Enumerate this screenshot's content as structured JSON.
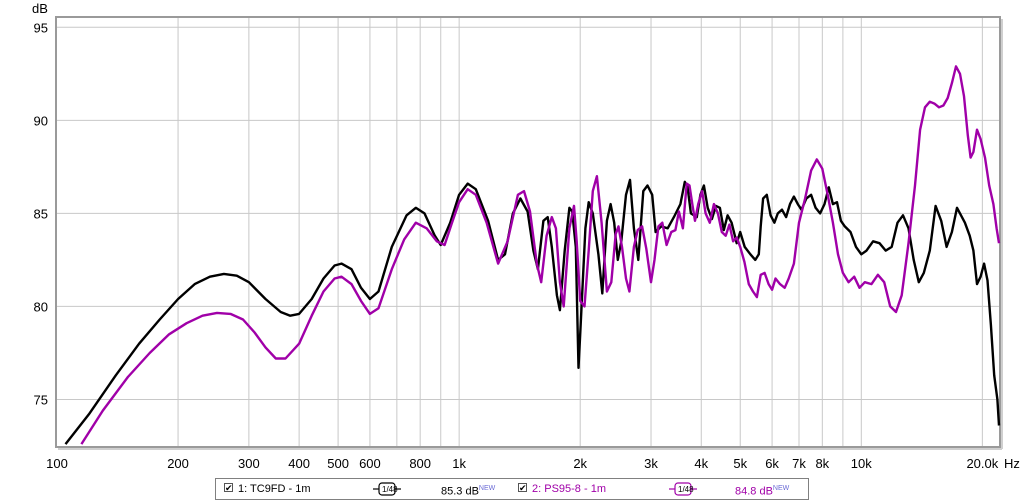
{
  "chart_data": {
    "type": "line",
    "ylabel": "dB",
    "xlabel": "Hz",
    "xscale": "log",
    "xlim": [
      100,
      22000
    ],
    "ylim": [
      72.5,
      95.5
    ],
    "grid": true,
    "x_tick_values": [
      100,
      200,
      300,
      400,
      500,
      600,
      800,
      1000,
      2000,
      3000,
      4000,
      5000,
      6000,
      7000,
      8000,
      10000,
      20000
    ],
    "x_tick_labels": [
      "100",
      "200",
      "300",
      "400",
      "500",
      "600",
      "800",
      "1k",
      "2k",
      "3k",
      "4k",
      "5k",
      "6k",
      "7k",
      "8k",
      "10k",
      "20.0k"
    ],
    "x_minor_ticks": [
      700,
      900,
      9000
    ],
    "y_tick_values": [
      75,
      80,
      85,
      90,
      95
    ],
    "y_tick_labels": [
      "75",
      "80",
      "85",
      "90",
      "95"
    ],
    "series": [
      {
        "name": "1: TC9FD - 1m",
        "color": "#000000",
        "points": [
          [
            105,
            72.6
          ],
          [
            120,
            74.2
          ],
          [
            140,
            76.3
          ],
          [
            160,
            78.0
          ],
          [
            180,
            79.3
          ],
          [
            200,
            80.4
          ],
          [
            220,
            81.2
          ],
          [
            240,
            81.6
          ],
          [
            260,
            81.75
          ],
          [
            280,
            81.65
          ],
          [
            300,
            81.3
          ],
          [
            330,
            80.4
          ],
          [
            360,
            79.7
          ],
          [
            380,
            79.5
          ],
          [
            400,
            79.6
          ],
          [
            430,
            80.4
          ],
          [
            460,
            81.5
          ],
          [
            490,
            82.2
          ],
          [
            510,
            82.3
          ],
          [
            540,
            82.0
          ],
          [
            570,
            81.0
          ],
          [
            600,
            80.4
          ],
          [
            630,
            80.8
          ],
          [
            680,
            83.2
          ],
          [
            740,
            84.9
          ],
          [
            780,
            85.3
          ],
          [
            820,
            85.0
          ],
          [
            870,
            83.8
          ],
          [
            900,
            83.3
          ],
          [
            950,
            84.5
          ],
          [
            1000,
            86.0
          ],
          [
            1050,
            86.6
          ],
          [
            1100,
            86.3
          ],
          [
            1180,
            84.6
          ],
          [
            1250,
            82.5
          ],
          [
            1300,
            82.8
          ],
          [
            1360,
            85.0
          ],
          [
            1420,
            85.8
          ],
          [
            1480,
            85.1
          ],
          [
            1530,
            83.0
          ],
          [
            1570,
            82.0
          ],
          [
            1620,
            84.6
          ],
          [
            1660,
            84.8
          ],
          [
            1700,
            83.2
          ],
          [
            1750,
            80.6
          ],
          [
            1780,
            79.8
          ],
          [
            1830,
            83.0
          ],
          [
            1880,
            85.3
          ],
          [
            1910,
            85.1
          ],
          [
            1950,
            83.2
          ],
          [
            1980,
            76.7
          ],
          [
            2000,
            78.5
          ],
          [
            2060,
            84.2
          ],
          [
            2100,
            85.6
          ],
          [
            2150,
            85.0
          ],
          [
            2220,
            82.8
          ],
          [
            2270,
            80.7
          ],
          [
            2330,
            84.6
          ],
          [
            2380,
            85.5
          ],
          [
            2430,
            84.5
          ],
          [
            2480,
            82.5
          ],
          [
            2530,
            83.5
          ],
          [
            2600,
            86.0
          ],
          [
            2660,
            86.8
          ],
          [
            2720,
            84.2
          ],
          [
            2790,
            82.5
          ],
          [
            2870,
            86.2
          ],
          [
            2940,
            86.5
          ],
          [
            3020,
            86.0
          ],
          [
            3080,
            84.0
          ],
          [
            3180,
            84.3
          ],
          [
            3300,
            84.2
          ],
          [
            3420,
            84.8
          ],
          [
            3550,
            85.5
          ],
          [
            3640,
            86.7
          ],
          [
            3700,
            86.4
          ],
          [
            3770,
            85.0
          ],
          [
            3900,
            84.8
          ],
          [
            3980,
            86.0
          ],
          [
            4060,
            86.5
          ],
          [
            4150,
            85.3
          ],
          [
            4250,
            84.7
          ],
          [
            4350,
            85.4
          ],
          [
            4450,
            85.3
          ],
          [
            4550,
            84.1
          ],
          [
            4650,
            84.9
          ],
          [
            4760,
            84.5
          ],
          [
            4900,
            83.4
          ],
          [
            5000,
            84.0
          ],
          [
            5130,
            83.2
          ],
          [
            5300,
            82.8
          ],
          [
            5450,
            82.5
          ],
          [
            5560,
            82.8
          ],
          [
            5620,
            84.3
          ],
          [
            5700,
            85.8
          ],
          [
            5820,
            86.0
          ],
          [
            5950,
            84.9
          ],
          [
            6080,
            84.5
          ],
          [
            6200,
            85.0
          ],
          [
            6350,
            85.2
          ],
          [
            6500,
            84.8
          ],
          [
            6650,
            85.5
          ],
          [
            6800,
            85.9
          ],
          [
            6950,
            85.5
          ],
          [
            7100,
            85.2
          ],
          [
            7300,
            85.8
          ],
          [
            7500,
            86.0
          ],
          [
            7700,
            85.3
          ],
          [
            7900,
            85.0
          ],
          [
            8100,
            85.5
          ],
          [
            8300,
            86.4
          ],
          [
            8500,
            85.5
          ],
          [
            8700,
            85.6
          ],
          [
            8900,
            84.6
          ],
          [
            9100,
            84.3
          ],
          [
            9400,
            84.0
          ],
          [
            9700,
            83.2
          ],
          [
            10000,
            82.8
          ],
          [
            10300,
            83.0
          ],
          [
            10700,
            83.5
          ],
          [
            11100,
            83.4
          ],
          [
            11500,
            83.0
          ],
          [
            11900,
            83.2
          ],
          [
            12300,
            84.5
          ],
          [
            12700,
            84.9
          ],
          [
            13100,
            84.2
          ],
          [
            13500,
            82.5
          ],
          [
            13900,
            81.3
          ],
          [
            14300,
            81.8
          ],
          [
            14800,
            83.0
          ],
          [
            15300,
            85.4
          ],
          [
            15800,
            84.6
          ],
          [
            16300,
            83.2
          ],
          [
            16800,
            84.0
          ],
          [
            17300,
            85.3
          ],
          [
            17700,
            84.9
          ],
          [
            18100,
            84.5
          ],
          [
            18600,
            83.8
          ],
          [
            19000,
            83.0
          ],
          [
            19400,
            81.2
          ],
          [
            19800,
            81.6
          ],
          [
            20200,
            82.3
          ],
          [
            20600,
            81.4
          ],
          [
            21000,
            79.0
          ],
          [
            21400,
            76.3
          ],
          [
            21800,
            75.0
          ],
          [
            22000,
            73.6
          ]
        ]
      },
      {
        "name": "2: PS95-8 - 1m",
        "color": "#a000a8",
        "points": [
          [
            115,
            72.6
          ],
          [
            130,
            74.4
          ],
          [
            150,
            76.2
          ],
          [
            170,
            77.5
          ],
          [
            190,
            78.5
          ],
          [
            210,
            79.1
          ],
          [
            230,
            79.5
          ],
          [
            250,
            79.65
          ],
          [
            270,
            79.6
          ],
          [
            290,
            79.3
          ],
          [
            310,
            78.6
          ],
          [
            330,
            77.8
          ],
          [
            350,
            77.2
          ],
          [
            370,
            77.2
          ],
          [
            400,
            78.0
          ],
          [
            430,
            79.5
          ],
          [
            460,
            80.8
          ],
          [
            490,
            81.5
          ],
          [
            510,
            81.6
          ],
          [
            540,
            81.2
          ],
          [
            570,
            80.3
          ],
          [
            600,
            79.6
          ],
          [
            630,
            79.9
          ],
          [
            680,
            82.0
          ],
          [
            730,
            83.6
          ],
          [
            780,
            84.5
          ],
          [
            830,
            84.2
          ],
          [
            880,
            83.5
          ],
          [
            920,
            83.3
          ],
          [
            960,
            84.5
          ],
          [
            1000,
            85.6
          ],
          [
            1050,
            86.3
          ],
          [
            1100,
            86.0
          ],
          [
            1170,
            84.5
          ],
          [
            1250,
            82.3
          ],
          [
            1320,
            83.5
          ],
          [
            1400,
            86.0
          ],
          [
            1450,
            86.2
          ],
          [
            1500,
            85.1
          ],
          [
            1560,
            82.3
          ],
          [
            1600,
            81.3
          ],
          [
            1650,
            83.8
          ],
          [
            1700,
            84.8
          ],
          [
            1740,
            84.2
          ],
          [
            1780,
            81.3
          ],
          [
            1820,
            80.0
          ],
          [
            1880,
            84.2
          ],
          [
            1930,
            85.4
          ],
          [
            1960,
            83.5
          ],
          [
            2000,
            80.3
          ],
          [
            2050,
            80.0
          ],
          [
            2100,
            83.0
          ],
          [
            2150,
            86.2
          ],
          [
            2200,
            87.0
          ],
          [
            2260,
            84.5
          ],
          [
            2330,
            80.8
          ],
          [
            2390,
            81.3
          ],
          [
            2450,
            83.9
          ],
          [
            2490,
            84.3
          ],
          [
            2540,
            83.2
          ],
          [
            2600,
            81.5
          ],
          [
            2650,
            80.8
          ],
          [
            2720,
            83.2
          ],
          [
            2780,
            84.1
          ],
          [
            2850,
            84.3
          ],
          [
            2920,
            83.1
          ],
          [
            3000,
            81.3
          ],
          [
            3060,
            82.5
          ],
          [
            3130,
            84.3
          ],
          [
            3200,
            84.5
          ],
          [
            3280,
            83.3
          ],
          [
            3370,
            84.0
          ],
          [
            3450,
            84.1
          ],
          [
            3520,
            85.1
          ],
          [
            3600,
            84.2
          ],
          [
            3680,
            86.6
          ],
          [
            3740,
            86.5
          ],
          [
            3800,
            85.5
          ],
          [
            3860,
            84.6
          ],
          [
            3930,
            85.5
          ],
          [
            4020,
            86.2
          ],
          [
            4100,
            85.0
          ],
          [
            4200,
            84.5
          ],
          [
            4300,
            85.5
          ],
          [
            4400,
            85.0
          ],
          [
            4500,
            84.0
          ],
          [
            4600,
            83.8
          ],
          [
            4700,
            84.4
          ],
          [
            4800,
            83.5
          ],
          [
            4900,
            83.7
          ],
          [
            5000,
            83.2
          ],
          [
            5120,
            82.4
          ],
          [
            5250,
            81.2
          ],
          [
            5380,
            80.8
          ],
          [
            5500,
            80.5
          ],
          [
            5620,
            81.7
          ],
          [
            5750,
            81.8
          ],
          [
            5880,
            81.2
          ],
          [
            6000,
            80.9
          ],
          [
            6120,
            81.5
          ],
          [
            6280,
            81.2
          ],
          [
            6450,
            81.0
          ],
          [
            6600,
            81.5
          ],
          [
            6800,
            82.3
          ],
          [
            7000,
            84.5
          ],
          [
            7250,
            85.8
          ],
          [
            7500,
            87.3
          ],
          [
            7750,
            87.9
          ],
          [
            8000,
            87.4
          ],
          [
            8250,
            86.0
          ],
          [
            8500,
            84.5
          ],
          [
            8750,
            82.8
          ],
          [
            9000,
            81.8
          ],
          [
            9300,
            81.3
          ],
          [
            9600,
            81.6
          ],
          [
            9900,
            81.0
          ],
          [
            10200,
            81.3
          ],
          [
            10600,
            81.2
          ],
          [
            11000,
            81.7
          ],
          [
            11400,
            81.3
          ],
          [
            11800,
            80.0
          ],
          [
            12200,
            79.7
          ],
          [
            12600,
            80.6
          ],
          [
            13100,
            83.4
          ],
          [
            13600,
            86.5
          ],
          [
            14000,
            89.5
          ],
          [
            14400,
            90.7
          ],
          [
            14800,
            91.0
          ],
          [
            15200,
            90.9
          ],
          [
            15600,
            90.7
          ],
          [
            16000,
            90.8
          ],
          [
            16400,
            91.2
          ],
          [
            16800,
            92.0
          ],
          [
            17200,
            92.9
          ],
          [
            17600,
            92.5
          ],
          [
            18000,
            91.3
          ],
          [
            18400,
            89.2
          ],
          [
            18700,
            88.0
          ],
          [
            19000,
            88.3
          ],
          [
            19400,
            89.5
          ],
          [
            19800,
            89.0
          ],
          [
            20300,
            88.0
          ],
          [
            20800,
            86.5
          ],
          [
            21300,
            85.5
          ],
          [
            21700,
            84.2
          ],
          [
            22000,
            83.4
          ]
        ]
      }
    ],
    "legend": {
      "placement": "bottom",
      "entries": [
        {
          "label": "1: TC9FD - 1m",
          "checked": true,
          "smoothing": "1/48",
          "level": "85.3 dB",
          "badge": "NEW",
          "color": "#000000"
        },
        {
          "label": "2: PS95-8 - 1m",
          "checked": true,
          "smoothing": "1/48",
          "level": "84.8 dB",
          "badge": "NEW",
          "color": "#a000a8"
        }
      ]
    }
  }
}
